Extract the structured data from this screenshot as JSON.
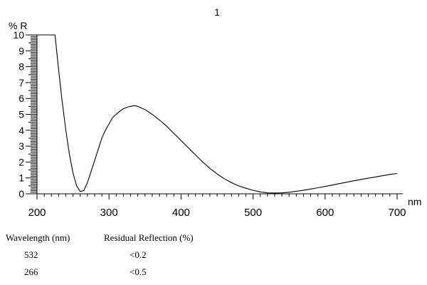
{
  "chart_data": {
    "type": "line",
    "title": "1",
    "ylabel": "% R",
    "xlabel": "nm",
    "xlim": [
      200,
      700
    ],
    "ylim": [
      0,
      10
    ],
    "x_ticks": [
      200,
      300,
      400,
      500,
      600,
      700
    ],
    "y_ticks": [
      0,
      1,
      2,
      3,
      4,
      5,
      6,
      7,
      8,
      9,
      10
    ],
    "grid": false,
    "series": [
      {
        "color": "#000000",
        "points": [
          [
            200,
            10
          ],
          [
            225,
            10
          ],
          [
            230,
            7.8
          ],
          [
            235,
            5.8
          ],
          [
            240,
            4.0
          ],
          [
            245,
            2.5
          ],
          [
            250,
            1.3
          ],
          [
            255,
            0.5
          ],
          [
            260,
            0.15
          ],
          [
            265,
            0.2
          ],
          [
            270,
            0.7
          ],
          [
            275,
            1.4
          ],
          [
            280,
            2.1
          ],
          [
            285,
            2.8
          ],
          [
            290,
            3.5
          ],
          [
            295,
            4.0
          ],
          [
            300,
            4.4
          ],
          [
            305,
            4.8
          ],
          [
            310,
            5.0
          ],
          [
            315,
            5.2
          ],
          [
            320,
            5.35
          ],
          [
            325,
            5.45
          ],
          [
            330,
            5.5
          ],
          [
            335,
            5.55
          ],
          [
            340,
            5.5
          ],
          [
            345,
            5.4
          ],
          [
            350,
            5.3
          ],
          [
            360,
            5.0
          ],
          [
            370,
            4.65
          ],
          [
            380,
            4.25
          ],
          [
            390,
            3.8
          ],
          [
            400,
            3.35
          ],
          [
            410,
            2.9
          ],
          [
            420,
            2.45
          ],
          [
            430,
            2.0
          ],
          [
            440,
            1.6
          ],
          [
            450,
            1.25
          ],
          [
            460,
            0.95
          ],
          [
            470,
            0.7
          ],
          [
            480,
            0.5
          ],
          [
            490,
            0.35
          ],
          [
            500,
            0.22
          ],
          [
            510,
            0.12
          ],
          [
            520,
            0.06
          ],
          [
            530,
            0.05
          ],
          [
            540,
            0.06
          ],
          [
            550,
            0.1
          ],
          [
            560,
            0.16
          ],
          [
            570,
            0.22
          ],
          [
            580,
            0.3
          ],
          [
            590,
            0.38
          ],
          [
            600,
            0.46
          ],
          [
            610,
            0.55
          ],
          [
            620,
            0.64
          ],
          [
            630,
            0.73
          ],
          [
            640,
            0.82
          ],
          [
            650,
            0.9
          ],
          [
            660,
            0.98
          ],
          [
            670,
            1.06
          ],
          [
            680,
            1.14
          ],
          [
            690,
            1.22
          ],
          [
            700,
            1.28
          ]
        ]
      }
    ]
  },
  "table": {
    "headers": [
      "Wavelength (nm)",
      "Residual Reflection (%)"
    ],
    "rows": [
      [
        "532",
        "<0.2"
      ],
      [
        "266",
        "<0.5"
      ]
    ]
  }
}
